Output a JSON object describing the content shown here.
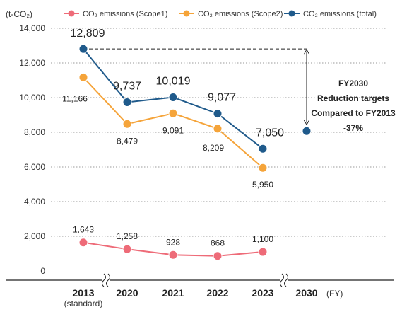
{
  "chart_data": {
    "type": "line",
    "y_unit_label": "(t-CO₂)",
    "ylim": [
      0,
      14000
    ],
    "y_ticks": [
      "0",
      "2,000",
      "4,000",
      "6,000",
      "8,000",
      "10,000",
      "12,000",
      "14,000"
    ],
    "y_tick_values": [
      0,
      2000,
      4000,
      6000,
      8000,
      10000,
      12000,
      14000
    ],
    "categories": [
      "2013",
      "2020",
      "2021",
      "2022",
      "2023",
      "2030"
    ],
    "category_sublabels": {
      "2013": "(standard)"
    },
    "x_unit_label": "(FY)",
    "grid": "dotted horizontal",
    "legend_position": "top",
    "series": [
      {
        "name": "CO₂ emissions (Scope1)",
        "color": "#ee6b78",
        "values": [
          1643,
          1258,
          928,
          868,
          1100,
          null
        ],
        "labels": [
          "1,643",
          "1,258",
          "928",
          "868",
          "1,100",
          ""
        ]
      },
      {
        "name": "CO₂ emissions (Scope2)",
        "color": "#f5a43a",
        "values": [
          11166,
          8479,
          9091,
          8209,
          5950,
          null
        ],
        "labels": [
          "11,166",
          "8,479",
          "9,091",
          "8,209",
          "5,950",
          ""
        ]
      },
      {
        "name": "CO₂ emissions (total)",
        "color": "#1f5a8b",
        "values": [
          12809,
          9737,
          10019,
          9077,
          7050,
          8070
        ],
        "labels": [
          "12,809",
          "9,737",
          "10,019",
          "9,077",
          "7,050",
          ""
        ]
      }
    ],
    "annotation": {
      "lines": [
        "FY2030",
        "Reduction targets",
        "Compared to FY2013",
        "-37%"
      ]
    }
  }
}
